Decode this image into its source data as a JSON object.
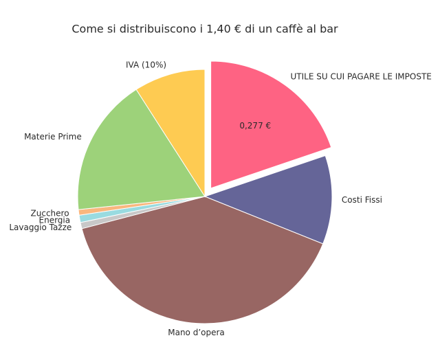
{
  "chart_data": {
    "type": "pie",
    "title": "Come si distribuiscono i 1,40 € di un caffè al bar",
    "categories": [
      "UTILE SU CUI PAGARE LE IMPOSTE",
      "Costi Fissi",
      "Mano d’opera",
      "Lavaggio Tazze",
      "Energia",
      "Zucchero",
      "Materie Prime",
      "IVA (10%)"
    ],
    "values": [
      0.277,
      0.158,
      0.558,
      0.011,
      0.013,
      0.01,
      0.246,
      0.127
    ],
    "value_labels": [
      "0,277 €",
      null,
      null,
      null,
      null,
      null,
      null,
      null
    ],
    "colors": [
      "#fe6383",
      "#656598",
      "#986663",
      "#c8c8c8",
      "#99dbe0",
      "#f9b77e",
      "#9dd27a",
      "#fecb52"
    ],
    "pull": [
      0.08,
      0,
      0,
      0,
      0,
      0,
      0,
      0
    ]
  }
}
